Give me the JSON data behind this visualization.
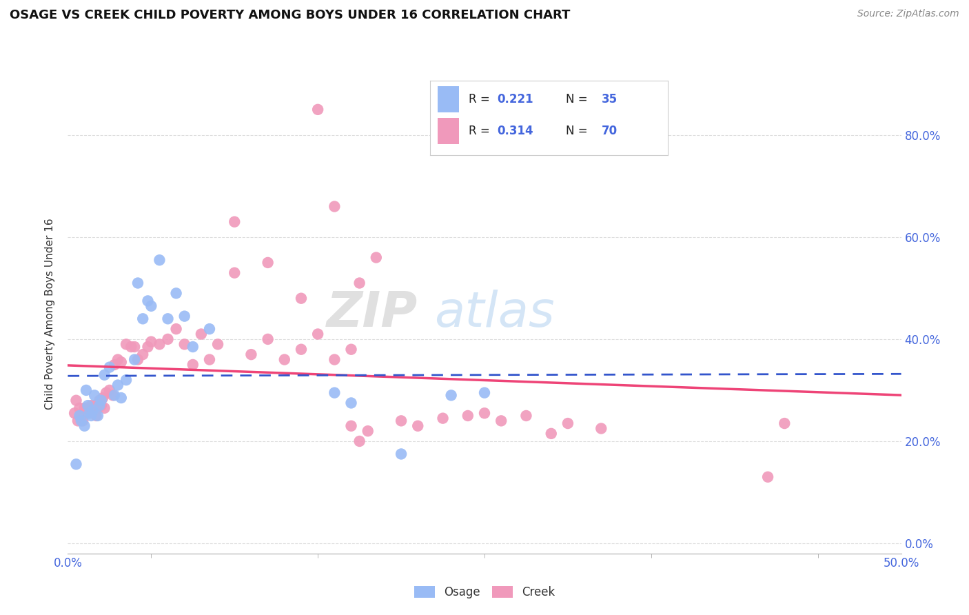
{
  "title": "OSAGE VS CREEK CHILD POVERTY AMONG BOYS UNDER 16 CORRELATION CHART",
  "source": "Source: ZipAtlas.com",
  "ylabel": "Child Poverty Among Boys Under 16",
  "xlim": [
    0.0,
    0.5
  ],
  "ylim": [
    -0.02,
    0.92
  ],
  "xticks": [
    0.0,
    0.1,
    0.2,
    0.3,
    0.4,
    0.5
  ],
  "xtick_labels_shown": [
    "0.0%",
    "",
    "",
    "",
    "",
    "50.0%"
  ],
  "yticks": [
    0.0,
    0.2,
    0.4,
    0.6,
    0.8
  ],
  "ytick_labels": [
    "0.0%",
    "20.0%",
    "40.0%",
    "60.0%",
    "80.0%"
  ],
  "watermark": "ZIPatlas",
  "osage_R": "0.221",
  "osage_N": "35",
  "creek_R": "0.314",
  "creek_N": "70",
  "osage_x": [
    0.005,
    0.007,
    0.008,
    0.01,
    0.011,
    0.012,
    0.013,
    0.014,
    0.015,
    0.016,
    0.018,
    0.019,
    0.02,
    0.022,
    0.025,
    0.028,
    0.03,
    0.032,
    0.035,
    0.04,
    0.042,
    0.045,
    0.048,
    0.05,
    0.055,
    0.06,
    0.065,
    0.07,
    0.075,
    0.085,
    0.16,
    0.17,
    0.2,
    0.23,
    0.25
  ],
  "osage_y": [
    0.155,
    0.25,
    0.24,
    0.23,
    0.3,
    0.27,
    0.255,
    0.25,
    0.26,
    0.29,
    0.25,
    0.27,
    0.28,
    0.33,
    0.345,
    0.29,
    0.31,
    0.285,
    0.32,
    0.36,
    0.51,
    0.44,
    0.475,
    0.465,
    0.555,
    0.44,
    0.49,
    0.445,
    0.385,
    0.42,
    0.295,
    0.275,
    0.175,
    0.29,
    0.295
  ],
  "creek_x": [
    0.004,
    0.005,
    0.006,
    0.007,
    0.008,
    0.009,
    0.01,
    0.011,
    0.012,
    0.013,
    0.014,
    0.015,
    0.016,
    0.017,
    0.018,
    0.019,
    0.02,
    0.021,
    0.022,
    0.023,
    0.025,
    0.027,
    0.028,
    0.03,
    0.032,
    0.035,
    0.038,
    0.04,
    0.042,
    0.045,
    0.048,
    0.05,
    0.055,
    0.06,
    0.065,
    0.07,
    0.075,
    0.08,
    0.085,
    0.09,
    0.1,
    0.11,
    0.12,
    0.13,
    0.14,
    0.15,
    0.16,
    0.17,
    0.175,
    0.185,
    0.2,
    0.21,
    0.225,
    0.24,
    0.25,
    0.26,
    0.275,
    0.29,
    0.3,
    0.32,
    0.1,
    0.12,
    0.14,
    0.15,
    0.16,
    0.17,
    0.175,
    0.18,
    0.42,
    0.43
  ],
  "creek_y": [
    0.255,
    0.28,
    0.24,
    0.265,
    0.25,
    0.24,
    0.265,
    0.265,
    0.255,
    0.26,
    0.27,
    0.26,
    0.27,
    0.25,
    0.265,
    0.28,
    0.27,
    0.285,
    0.265,
    0.295,
    0.3,
    0.29,
    0.35,
    0.36,
    0.355,
    0.39,
    0.385,
    0.385,
    0.36,
    0.37,
    0.385,
    0.395,
    0.39,
    0.4,
    0.42,
    0.39,
    0.35,
    0.41,
    0.36,
    0.39,
    0.53,
    0.37,
    0.4,
    0.36,
    0.38,
    0.41,
    0.36,
    0.38,
    0.51,
    0.56,
    0.24,
    0.23,
    0.245,
    0.25,
    0.255,
    0.24,
    0.25,
    0.215,
    0.235,
    0.225,
    0.63,
    0.55,
    0.48,
    0.85,
    0.66,
    0.23,
    0.2,
    0.22,
    0.13,
    0.235
  ],
  "osage_color": "#99bbf5",
  "creek_color": "#f099bb",
  "osage_line_color": "#3355cc",
  "creek_line_color": "#ee4477",
  "background_color": "#ffffff",
  "grid_color": "#dddddd",
  "tick_color": "#4466dd",
  "minor_xtick_positions": [
    0.05,
    0.1,
    0.15,
    0.2,
    0.25,
    0.3,
    0.35,
    0.4,
    0.45,
    0.5
  ]
}
